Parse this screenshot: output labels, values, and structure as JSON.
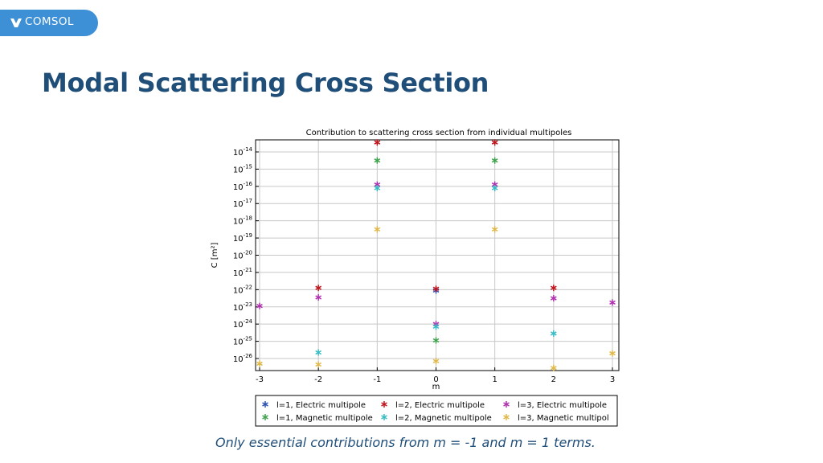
{
  "brand": {
    "name": "COMSOL",
    "logo_icon": "comsol-logo-icon",
    "tab_color": "#3d8fd6"
  },
  "slide": {
    "title": "Modal Scattering Cross Section",
    "caption": "Only essential contributions from m = -1 and m = 1 terms."
  },
  "chart_data": {
    "type": "scatter",
    "title": "Contribution to scattering cross section from individual multipoles",
    "xlabel": "m",
    "ylabel": "C [m²]",
    "xlim": [
      -3,
      3
    ],
    "ylim_exp": [
      -26.7,
      -13.3
    ],
    "y_scale": "log",
    "grid": true,
    "marker": "asterisk",
    "legend_position": "bottom",
    "x_ticks": [
      "-3",
      "-2",
      "-1",
      "0",
      "1",
      "2",
      "3"
    ],
    "y_ticks": [
      {
        "base": "10",
        "exp": "-14",
        "value": -14
      },
      {
        "base": "10",
        "exp": "-15",
        "value": -15
      },
      {
        "base": "10",
        "exp": "-16",
        "value": -16
      },
      {
        "base": "10",
        "exp": "-17",
        "value": -17
      },
      {
        "base": "10",
        "exp": "-18",
        "value": -18
      },
      {
        "base": "10",
        "exp": "-19",
        "value": -19
      },
      {
        "base": "10",
        "exp": "-20",
        "value": -20
      },
      {
        "base": "10",
        "exp": "-21",
        "value": -21
      },
      {
        "base": "10",
        "exp": "-22",
        "value": -22
      },
      {
        "base": "10",
        "exp": "-23",
        "value": -23
      },
      {
        "base": "10",
        "exp": "-24",
        "value": -24
      },
      {
        "base": "10",
        "exp": "-25",
        "value": -25
      },
      {
        "base": "10",
        "exp": "-26",
        "value": -26
      }
    ],
    "series": [
      {
        "name": "l=1, Electric multipole",
        "color": "#2a4fb5",
        "points": [
          {
            "m": 0,
            "log10_C": -22.05
          }
        ]
      },
      {
        "name": "l=2, Electric multipole",
        "color": "#c0141c",
        "points": [
          {
            "m": -2,
            "log10_C": -21.9
          },
          {
            "m": -1,
            "log10_C": -13.45
          },
          {
            "m": 0,
            "log10_C": -21.95
          },
          {
            "m": 1,
            "log10_C": -13.45
          },
          {
            "m": 2,
            "log10_C": -21.9
          }
        ]
      },
      {
        "name": "l=3, Electric multipole",
        "color": "#b02fb0",
        "points": [
          {
            "m": -3,
            "log10_C": -22.95
          },
          {
            "m": -2,
            "log10_C": -22.45
          },
          {
            "m": -1,
            "log10_C": -15.9
          },
          {
            "m": 0,
            "log10_C": -24.0
          },
          {
            "m": 1,
            "log10_C": -15.9
          },
          {
            "m": 2,
            "log10_C": -22.5
          },
          {
            "m": 3,
            "log10_C": -22.75
          }
        ]
      },
      {
        "name": "l=1, Magnetic multipole",
        "color": "#3fa34d",
        "points": [
          {
            "m": -1,
            "log10_C": -14.5
          },
          {
            "m": 0,
            "log10_C": -24.95
          },
          {
            "m": 1,
            "log10_C": -14.5
          }
        ]
      },
      {
        "name": "l=2, Magnetic multipole",
        "color": "#36bcc4",
        "points": [
          {
            "m": -2,
            "log10_C": -25.65
          },
          {
            "m": -1,
            "log10_C": -16.1
          },
          {
            "m": 0,
            "log10_C": -24.15
          },
          {
            "m": 1,
            "log10_C": -16.1
          },
          {
            "m": 2,
            "log10_C": -24.55
          }
        ]
      },
      {
        "name": "l=3, Magnetic multipol",
        "color": "#e0b94a",
        "points": [
          {
            "m": -3,
            "log10_C": -26.3
          },
          {
            "m": -2,
            "log10_C": -26.35
          },
          {
            "m": -1,
            "log10_C": -18.5
          },
          {
            "m": 0,
            "log10_C": -26.15
          },
          {
            "m": 1,
            "log10_C": -18.5
          },
          {
            "m": 2,
            "log10_C": -26.55
          },
          {
            "m": 3,
            "log10_C": -25.7
          }
        ]
      }
    ],
    "legend_order": [
      0,
      1,
      2,
      3,
      4,
      5
    ]
  }
}
